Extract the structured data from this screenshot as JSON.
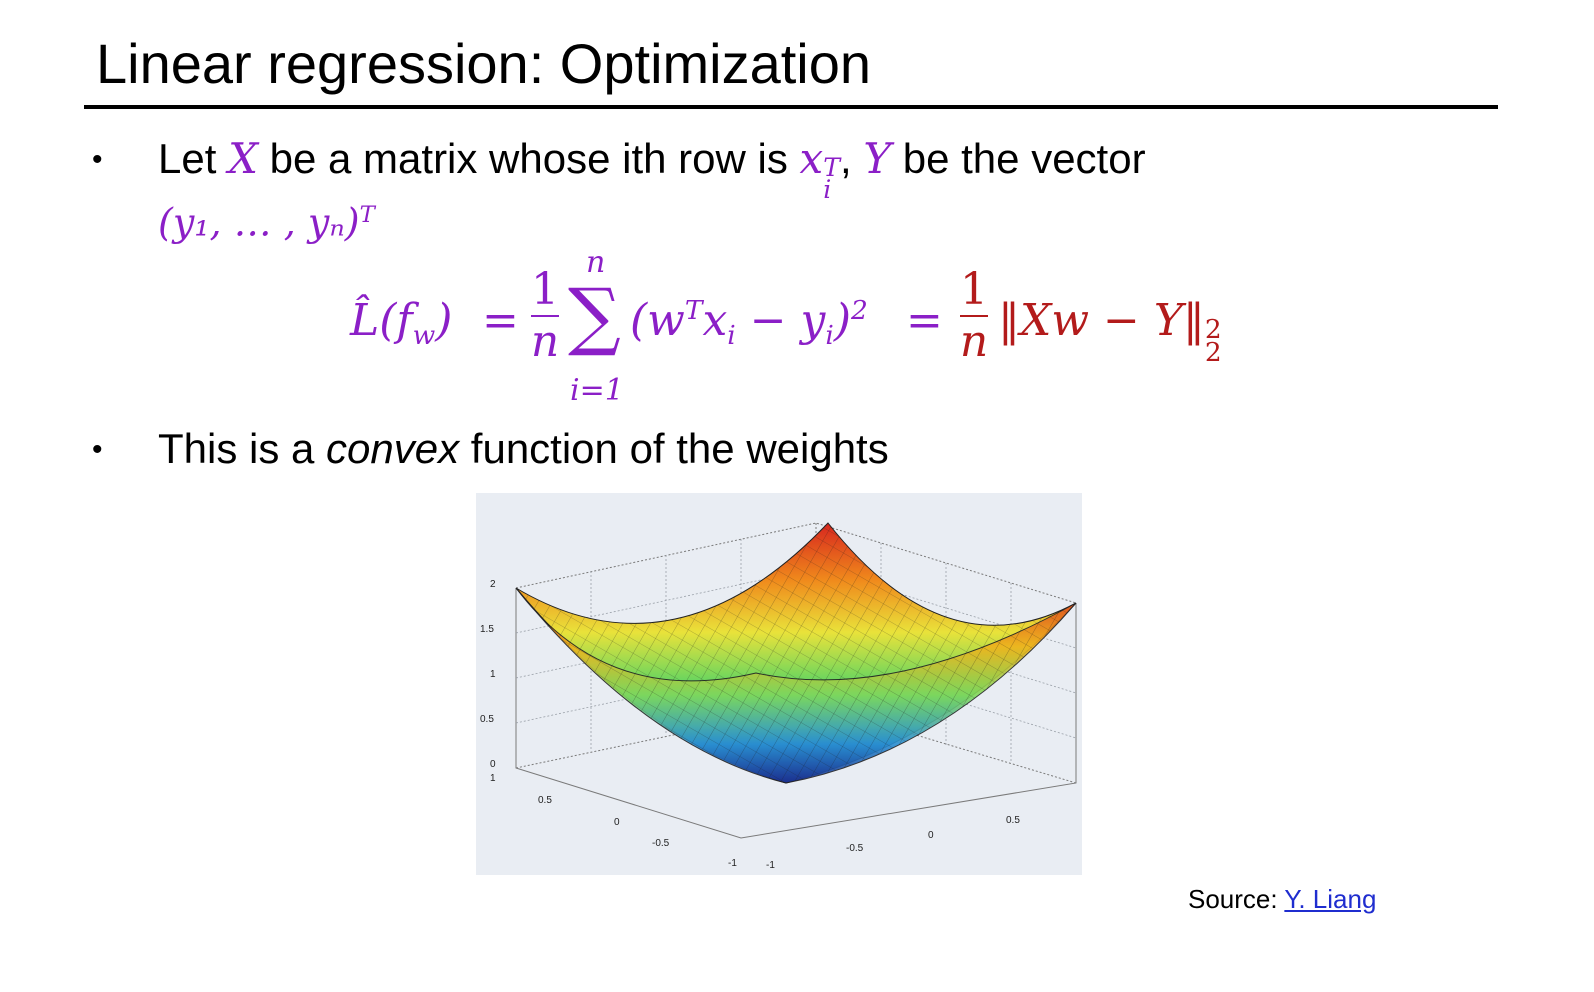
{
  "slide": {
    "title": "Linear regression: Optimization",
    "bullet_glyph": "•"
  },
  "bullet1": {
    "t1": "Let ",
    "X": "X",
    "t2": " be a matrix whose ith row is ",
    "x": "x",
    "x_sup": "T",
    "x_sub": "i",
    "t3": ", ",
    "Y": "Y",
    "t4": " be the vector",
    "vector": "(y₁, … , yₙ)",
    "vector_sup": "T"
  },
  "formula": {
    "lhs": "L̂(f",
    "lhs_sub": "w",
    "lhs_close": ")",
    "eq1": "=",
    "frac1_num": "1",
    "frac1_den": "n",
    "sigma": "∑",
    "sum_upper": "n",
    "sum_lower": "i=1",
    "body_open": "(w",
    "body_sup": "T",
    "body_x": "x",
    "body_x_sub": "i",
    "body_minus": " − y",
    "body_y_sub": "i",
    "body_close": ")",
    "body_sq": "2",
    "eq2": "=",
    "frac2_num": "1",
    "frac2_den": "n",
    "norm": "‖Xw − Y‖",
    "norm_sup": "2",
    "norm_sub": "2"
  },
  "bullet2": {
    "t1": "This is a ",
    "em": "convex",
    "t2": " function of the weights"
  },
  "plot": {
    "z_ticks": [
      "2",
      "1.5",
      "1",
      "0.5",
      "0"
    ],
    "x_ticks": [
      "1",
      "0.5",
      "0",
      "-0.5",
      "-1"
    ],
    "y_ticks": [
      "-1",
      "-0.5",
      "0",
      "0.5"
    ],
    "background": "#e9edf3"
  },
  "source": {
    "label": "Source: ",
    "link": "Y. Liang",
    "link_color": "#1f2dcf"
  },
  "colors": {
    "math": "#8b1fc7",
    "math_red": "#b31b1b"
  }
}
